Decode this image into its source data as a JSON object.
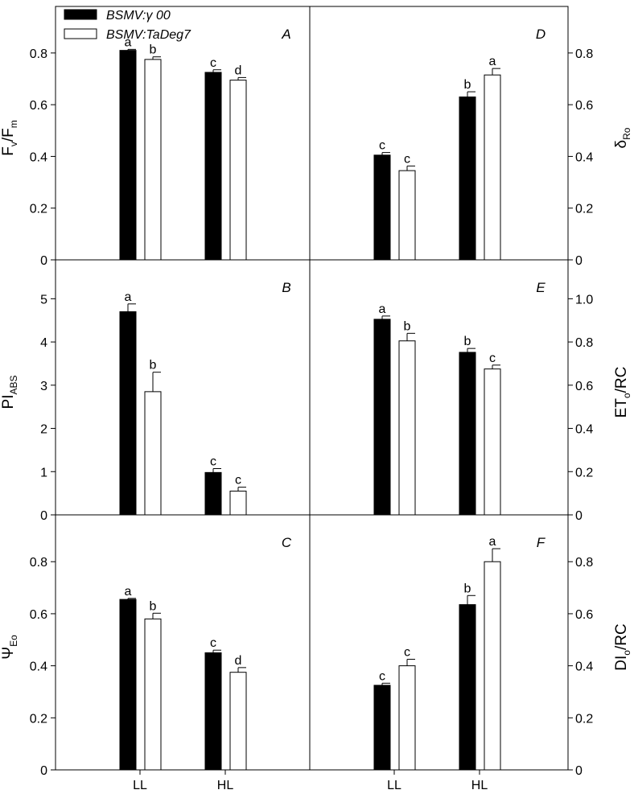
{
  "chart_data": [
    {
      "panel": "A",
      "type": "bar",
      "side": "left",
      "ylabel": "F_v/F_m",
      "ylim": [
        0,
        0.98
      ],
      "ticks": [
        "0",
        "0.2",
        "0.4",
        "0.6",
        "0.8"
      ],
      "categories": [
        "LL",
        "HL"
      ],
      "series": [
        {
          "name": "BSMV:γ 00",
          "values": [
            0.81,
            0.725
          ],
          "errors": [
            0.004,
            0.01
          ],
          "letters": [
            "a",
            "c"
          ]
        },
        {
          "name": "BSMV:TaDeg7",
          "values": [
            0.775,
            0.695
          ],
          "errors": [
            0.01,
            0.01
          ],
          "letters": [
            "b",
            "d"
          ]
        }
      ]
    },
    {
      "panel": "D",
      "type": "bar",
      "side": "right",
      "ylabel": "δ_Ro",
      "ylim": [
        0,
        0.98
      ],
      "ticks": [
        "0",
        "0.2",
        "0.4",
        "0.6",
        "0.8"
      ],
      "categories": [
        "LL",
        "HL"
      ],
      "series": [
        {
          "name": "BSMV:γ 00",
          "values": [
            0.405,
            0.63
          ],
          "errors": [
            0.01,
            0.02
          ],
          "letters": [
            "c",
            "b"
          ]
        },
        {
          "name": "BSMV:TaDeg7",
          "values": [
            0.345,
            0.715
          ],
          "errors": [
            0.018,
            0.025
          ],
          "letters": [
            "c",
            "a"
          ]
        }
      ]
    },
    {
      "panel": "B",
      "type": "bar",
      "side": "left",
      "ylabel": "PI_ABS",
      "ylim": [
        0,
        5.9
      ],
      "ticks": [
        "0",
        "1",
        "2",
        "3",
        "4",
        "5"
      ],
      "categories": [
        "LL",
        "HL"
      ],
      "series": [
        {
          "name": "BSMV:γ 00",
          "values": [
            4.7,
            0.98
          ],
          "errors": [
            0.18,
            0.09
          ],
          "letters": [
            "a",
            "c"
          ]
        },
        {
          "name": "BSMV:TaDeg7",
          "values": [
            2.85,
            0.55
          ],
          "errors": [
            0.45,
            0.09
          ],
          "letters": [
            "b",
            "c"
          ]
        }
      ]
    },
    {
      "panel": "E",
      "type": "bar",
      "side": "right",
      "ylabel": "ET_o/RC",
      "ylim": [
        0,
        1.18
      ],
      "ticks": [
        "0",
        "0.2",
        "0.4",
        "0.6",
        "0.8",
        "1.0"
      ],
      "categories": [
        "LL",
        "HL"
      ],
      "series": [
        {
          "name": "BSMV:γ 00",
          "values": [
            0.905,
            0.752
          ],
          "errors": [
            0.015,
            0.018
          ],
          "letters": [
            "a",
            "b"
          ]
        },
        {
          "name": "BSMV:TaDeg7",
          "values": [
            0.805,
            0.675
          ],
          "errors": [
            0.035,
            0.018
          ],
          "letters": [
            "b",
            "c"
          ]
        }
      ]
    },
    {
      "panel": "C",
      "type": "bar",
      "side": "left",
      "ylabel": "Ψ_Eo",
      "ylim": [
        0,
        0.98
      ],
      "ticks": [
        "0",
        "0.2",
        "0.4",
        "0.6",
        "0.8"
      ],
      "categories": [
        "LL",
        "HL"
      ],
      "series": [
        {
          "name": "BSMV:γ 00",
          "values": [
            0.655,
            0.45
          ],
          "errors": [
            0.004,
            0.01
          ],
          "letters": [
            "a",
            "c"
          ]
        },
        {
          "name": "BSMV:TaDeg7",
          "values": [
            0.58,
            0.375
          ],
          "errors": [
            0.022,
            0.018
          ],
          "letters": [
            "b",
            "d"
          ]
        }
      ]
    },
    {
      "panel": "F",
      "type": "bar",
      "side": "right",
      "ylabel": "DI_o/RC",
      "ylim": [
        0,
        0.98
      ],
      "ticks": [
        "0",
        "0.2",
        "0.4",
        "0.6",
        "0.8"
      ],
      "categories": [
        "LL",
        "HL"
      ],
      "series": [
        {
          "name": "BSMV:γ 00",
          "values": [
            0.325,
            0.635
          ],
          "errors": [
            0.008,
            0.035
          ],
          "letters": [
            "c",
            "b"
          ]
        },
        {
          "name": "BSMV:TaDeg7",
          "values": [
            0.4,
            0.8
          ],
          "errors": [
            0.025,
            0.05
          ],
          "letters": [
            "c",
            "a"
          ]
        }
      ]
    }
  ],
  "legend": {
    "items": [
      {
        "label": "BSMV:γ 00",
        "fill": "#000000"
      },
      {
        "label": "BSMV:TaDeg7",
        "fill": "#ffffff"
      }
    ],
    "placement": "top-left"
  },
  "colors": {
    "bar_dark": "#000000",
    "bar_light": "#ffffff",
    "axis": "#000000"
  }
}
